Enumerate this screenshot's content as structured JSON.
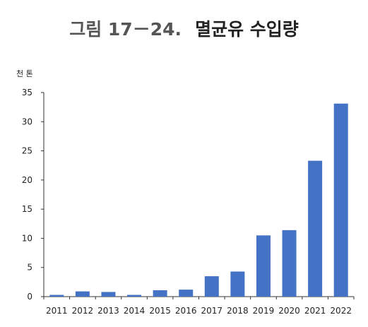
{
  "figure_label": "그림 17－24.",
  "chart_data": {
    "type": "bar",
    "title": "멸균유 수입량",
    "unit_label": "천 톤",
    "xlabel": "",
    "ylabel": "",
    "categories": [
      "2011",
      "2012",
      "2013",
      "2014",
      "2015",
      "2016",
      "2017",
      "2018",
      "2019",
      "2020",
      "2021",
      "2022"
    ],
    "values": [
      0.3,
      0.9,
      0.8,
      0.3,
      1.1,
      1.2,
      3.5,
      4.3,
      10.5,
      11.4,
      23.3,
      33.1
    ],
    "ylim": [
      0,
      35
    ],
    "yticks": [
      "0",
      "5",
      "10",
      "15",
      "20",
      "25",
      "30",
      "35"
    ],
    "bar_color": "#4472C4",
    "grid": false
  }
}
